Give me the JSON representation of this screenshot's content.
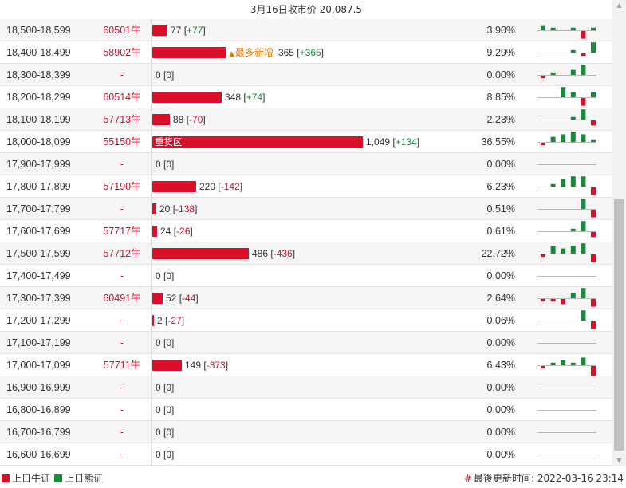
{
  "header": {
    "title": "3月16日收市价 20,087.5"
  },
  "colors": {
    "bull": "#d9102a",
    "bear": "#1a8a3a",
    "highlight": "#e07b00"
  },
  "rows": [
    {
      "range": "18,500-18,599",
      "code": "60501牛",
      "qty": "77",
      "chg": "+77",
      "pct": "3.90%",
      "bar_share": 0.073,
      "spark": [
        2,
        1,
        0,
        1,
        -3,
        1
      ]
    },
    {
      "range": "18,400-18,499",
      "code": "58902牛",
      "qty": "365",
      "chg": "+365",
      "pct": "9.29%",
      "bar_share": 0.35,
      "badge": "最多新增",
      "spark": [
        0,
        0,
        0,
        1,
        -1,
        4
      ]
    },
    {
      "range": "18,300-18,399",
      "code": "-",
      "qty": "0",
      "chg": "0",
      "pct": "0.00%",
      "bar_share": 0,
      "spark": [
        -1,
        1,
        0,
        2,
        4,
        0
      ]
    },
    {
      "range": "18,200-18,299",
      "code": "60514牛",
      "qty": "348",
      "chg": "+74",
      "pct": "8.85%",
      "bar_share": 0.33,
      "spark": [
        0,
        0,
        4,
        2,
        -3,
        2
      ]
    },
    {
      "range": "18,100-18,199",
      "code": "57713牛",
      "qty": "88",
      "chg": "-70",
      "pct": "2.23%",
      "bar_share": 0.083,
      "spark": [
        0,
        0,
        0,
        1,
        4,
        -2
      ]
    },
    {
      "range": "18,000-18,099",
      "code": "55150牛",
      "qty": "1,049",
      "chg": "+134",
      "pct": "36.55%",
      "bar_share": 1.0,
      "bar_label": "重货区",
      "spark": [
        -1,
        2,
        3,
        4,
        3,
        1
      ]
    },
    {
      "range": "17,900-17,999",
      "code": "-",
      "qty": "0",
      "chg": "0",
      "pct": "0.00%",
      "bar_share": 0,
      "spark": [
        0,
        0,
        0,
        0,
        0,
        0
      ]
    },
    {
      "range": "17,800-17,899",
      "code": "57190牛",
      "qty": "220",
      "chg": "-142",
      "pct": "6.23%",
      "bar_share": 0.21,
      "spark": [
        0,
        1,
        3,
        4,
        4,
        -3
      ]
    },
    {
      "range": "17,700-17,799",
      "code": "-",
      "qty": "20",
      "chg": "-138",
      "pct": "0.51%",
      "bar_share": 0.02,
      "spark": [
        0,
        0,
        0,
        0,
        4,
        -3
      ]
    },
    {
      "range": "17,600-17,699",
      "code": "57717牛",
      "qty": "24",
      "chg": "-26",
      "pct": "0.61%",
      "bar_share": 0.023,
      "spark": [
        0,
        0,
        0,
        1,
        4,
        -2
      ]
    },
    {
      "range": "17,500-17,599",
      "code": "57712牛",
      "qty": "486",
      "chg": "-436",
      "pct": "22.72%",
      "bar_share": 0.46,
      "spark": [
        -1,
        3,
        2,
        3,
        4,
        -3
      ]
    },
    {
      "range": "17,400-17,499",
      "code": "-",
      "qty": "0",
      "chg": "0",
      "pct": "0.00%",
      "bar_share": 0,
      "spark": [
        0,
        0,
        0,
        0,
        0,
        0
      ]
    },
    {
      "range": "17,300-17,399",
      "code": "60491牛",
      "qty": "52",
      "chg": "-44",
      "pct": "2.64%",
      "bar_share": 0.05,
      "spark": [
        -1,
        -1,
        -2,
        2,
        4,
        -3
      ]
    },
    {
      "range": "17,200-17,299",
      "code": "-",
      "qty": "2",
      "chg": "-27",
      "pct": "0.06%",
      "bar_share": 0.004,
      "spark": [
        0,
        0,
        0,
        0,
        4,
        -3
      ]
    },
    {
      "range": "17,100-17,199",
      "code": "-",
      "qty": "0",
      "chg": "0",
      "pct": "0.00%",
      "bar_share": 0,
      "spark": [
        0,
        0,
        0,
        0,
        0,
        0
      ]
    },
    {
      "range": "17,000-17,099",
      "code": "57711牛",
      "qty": "149",
      "chg": "-373",
      "pct": "6.43%",
      "bar_share": 0.14,
      "spark": [
        -1,
        1,
        2,
        1,
        3,
        -4
      ]
    },
    {
      "range": "16,900-16,999",
      "code": "-",
      "qty": "0",
      "chg": "0",
      "pct": "0.00%",
      "bar_share": 0,
      "spark": [
        0,
        0,
        0,
        0,
        0,
        0
      ]
    },
    {
      "range": "16,800-16,899",
      "code": "-",
      "qty": "0",
      "chg": "0",
      "pct": "0.00%",
      "bar_share": 0,
      "spark": [
        0,
        0,
        0,
        0,
        0,
        0
      ]
    },
    {
      "range": "16,700-16,799",
      "code": "-",
      "qty": "0",
      "chg": "0",
      "pct": "0.00%",
      "bar_share": 0,
      "spark": [
        0,
        0,
        0,
        0,
        0,
        0
      ]
    },
    {
      "range": "16,600-16,699",
      "code": "-",
      "qty": "0",
      "chg": "0",
      "pct": "0.00%",
      "bar_share": 0,
      "spark": [
        0,
        0,
        0,
        0,
        0,
        0
      ]
    }
  ],
  "footer": {
    "legend_bull": "上日牛证",
    "legend_bear": "上日熊证",
    "update_label": "最後更新时间: 2022-03-16 23:14"
  },
  "icons": {
    "scroll_up": "triangle-up-icon",
    "scroll_down": "triangle-down-icon",
    "hash": "hash-icon",
    "badge_arrow": "triangle-up-icon"
  }
}
